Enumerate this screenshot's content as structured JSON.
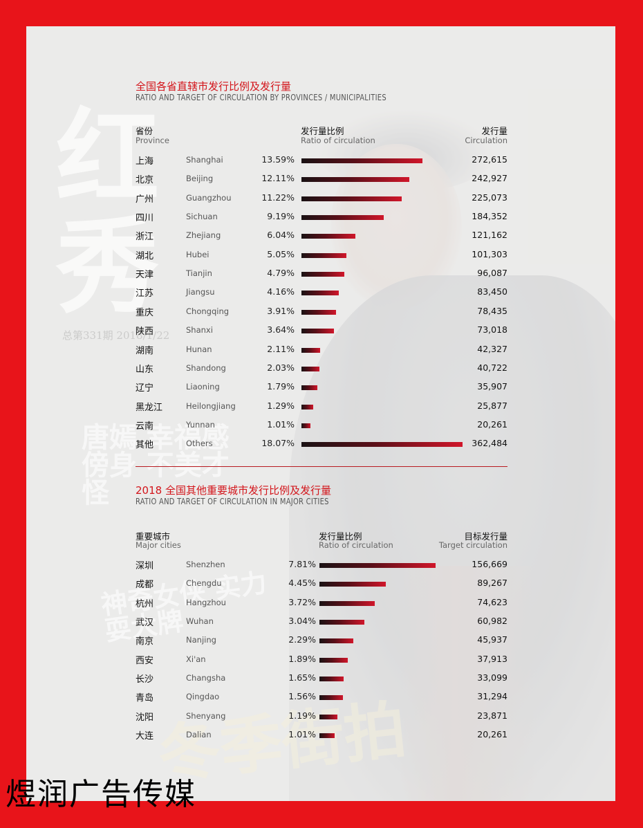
{
  "background": {
    "magazine_title": "红秀",
    "issue_text": "总第331期 2018/1/22",
    "cover_line_1": "唐嫣 幸福感傍身 不美才怪",
    "cover_line_2": "神奇女侠 实力耍大牌",
    "cover_line_3": "冬季街拍"
  },
  "brand": "煜润广告传媒",
  "colors": {
    "frame": "#e8141a",
    "accent": "#d3151b",
    "bar_dark": "#1a1214",
    "bar_light": "#d0162a"
  },
  "chart_data": [
    {
      "type": "bar",
      "title": "全国各省直辖市发行比例及发行量",
      "subtitle": "RATIO AND TARGET OF CIRCULATION BY PROVINCES / MUNICIPALITIES",
      "headers": {
        "name_cn": "省份",
        "name_en": "Province",
        "ratio_cn": "发行量比例",
        "ratio_en": "Ratio of circulation",
        "value_cn": "发行量",
        "value_en": "Circulation"
      },
      "rows": [
        {
          "cn": "上海",
          "en": "Shanghai",
          "pct_label": "13.59%",
          "pct": 13.59,
          "value": "272,615"
        },
        {
          "cn": "北京",
          "en": "Beijing",
          "pct_label": "12.11%",
          "pct": 12.11,
          "value": "242,927"
        },
        {
          "cn": "广州",
          "en": "Guangzhou",
          "pct_label": "11.22%",
          "pct": 11.22,
          "value": "225,073"
        },
        {
          "cn": "四川",
          "en": "Sichuan",
          "pct_label": "9.19%",
          "pct": 9.19,
          "value": "184,352"
        },
        {
          "cn": "浙江",
          "en": "Zhejiang",
          "pct_label": "6.04%",
          "pct": 6.04,
          "value": "121,162"
        },
        {
          "cn": "湖北",
          "en": "Hubei",
          "pct_label": "5.05%",
          "pct": 5.05,
          "value": "101,303"
        },
        {
          "cn": "天津",
          "en": "Tianjin",
          "pct_label": "4.79%",
          "pct": 4.79,
          "value": "96,087"
        },
        {
          "cn": "江苏",
          "en": "Jiangsu",
          "pct_label": "4.16%",
          "pct": 4.16,
          "value": "83,450"
        },
        {
          "cn": "重庆",
          "en": "Chongqing",
          "pct_label": "3.91%",
          "pct": 3.91,
          "value": "78,435"
        },
        {
          "cn": "陕西",
          "en": "Shanxi",
          "pct_label": "3.64%",
          "pct": 3.64,
          "value": "73,018"
        },
        {
          "cn": "湖南",
          "en": "Hunan",
          "pct_label": "2.11%",
          "pct": 2.11,
          "value": "42,327"
        },
        {
          "cn": "山东",
          "en": "Shandong",
          "pct_label": "2.03%",
          "pct": 2.03,
          "value": "40,722"
        },
        {
          "cn": "辽宁",
          "en": "Liaoning",
          "pct_label": "1.79%",
          "pct": 1.79,
          "value": "35,907"
        },
        {
          "cn": "黑龙江",
          "en": "Heilongjiang",
          "pct_label": "1.29%",
          "pct": 1.29,
          "value": "25,877"
        },
        {
          "cn": "云南",
          "en": "Yunnan",
          "pct_label": "1.01%",
          "pct": 1.01,
          "value": "20,261"
        },
        {
          "cn": "其他",
          "en": "Others",
          "pct_label": "18.07%",
          "pct": 18.07,
          "value": "362,484"
        }
      ]
    },
    {
      "type": "bar",
      "title": "2018 全国其他重要城市发行比例及发行量",
      "subtitle": "RATIO AND TARGET OF CIRCULATION IN MAJOR CITIES",
      "headers": {
        "name_cn": "重要城市",
        "name_en": "Major cities",
        "ratio_cn": "发行量比例",
        "ratio_en": "Ratio of circulation",
        "value_cn": "目标发行量",
        "value_en": "Target circulation"
      },
      "rows": [
        {
          "cn": "深圳",
          "en": "Shenzhen",
          "pct_label": "7.81%",
          "pct": 7.81,
          "value": "156,669"
        },
        {
          "cn": "成都",
          "en": "Chengdu",
          "pct_label": "4.45%",
          "pct": 4.45,
          "value": "89,267"
        },
        {
          "cn": "杭州",
          "en": "Hangzhou",
          "pct_label": "3.72%",
          "pct": 3.72,
          "value": "74,623"
        },
        {
          "cn": "武汉",
          "en": "Wuhan",
          "pct_label": "3.04%",
          "pct": 3.04,
          "value": "60,982"
        },
        {
          "cn": "南京",
          "en": "Nanjing",
          "pct_label": "2.29%",
          "pct": 2.29,
          "value": "45,937"
        },
        {
          "cn": "西安",
          "en": "Xi'an",
          "pct_label": "1.89%",
          "pct": 1.89,
          "value": "37,913"
        },
        {
          "cn": "长沙",
          "en": "Changsha",
          "pct_label": "1.65%",
          "pct": 1.65,
          "value": "33,099"
        },
        {
          "cn": "青岛",
          "en": "Qingdao",
          "pct_label": "1.56%",
          "pct": 1.56,
          "value": "31,294"
        },
        {
          "cn": "沈阳",
          "en": "Shenyang",
          "pct_label": "1.19%",
          "pct": 1.19,
          "value": "23,871"
        },
        {
          "cn": "大连",
          "en": "Dalian",
          "pct_label": "1.01%",
          "pct": 1.01,
          "value": "20,261"
        }
      ]
    }
  ]
}
